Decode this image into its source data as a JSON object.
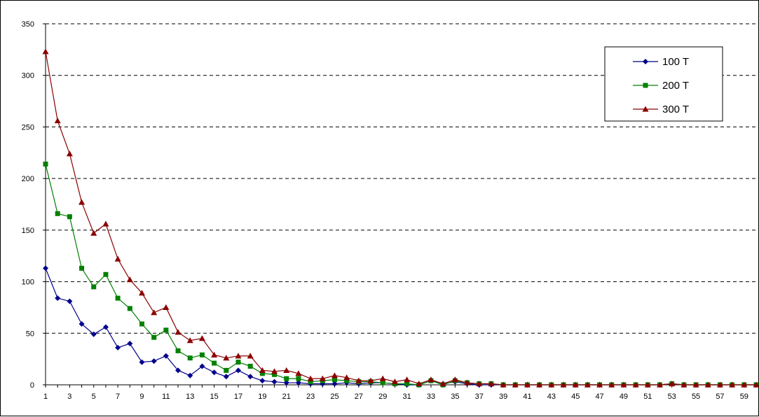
{
  "chart_data": {
    "type": "line",
    "title": "",
    "xlabel": "",
    "ylabel": "",
    "ylim": [
      0,
      350
    ],
    "y_ticks": [
      0,
      50,
      100,
      150,
      200,
      250,
      300,
      350
    ],
    "x": [
      1,
      2,
      3,
      4,
      5,
      6,
      7,
      8,
      9,
      10,
      11,
      12,
      13,
      14,
      15,
      16,
      17,
      18,
      19,
      20,
      21,
      22,
      23,
      24,
      25,
      26,
      27,
      28,
      29,
      30,
      31,
      32,
      33,
      34,
      35,
      36,
      37,
      38,
      39,
      40,
      41,
      42,
      43,
      44,
      45,
      46,
      47,
      48,
      49,
      50,
      51,
      52,
      53,
      54,
      55,
      56,
      57,
      58,
      59,
      60
    ],
    "x_tick_labels": [
      "1",
      "3",
      "5",
      "7",
      "9",
      "11",
      "13",
      "15",
      "17",
      "19",
      "21",
      "23",
      "25",
      "27",
      "29",
      "31",
      "33",
      "35",
      "37",
      "39",
      "41",
      "43",
      "45",
      "47",
      "49",
      "51",
      "53",
      "55",
      "57",
      "59"
    ],
    "grid": "horizontal dashed",
    "legend_position": "top-right",
    "series": [
      {
        "name": "100 T",
        "color": "#00008B",
        "marker": "diamond",
        "values": [
          113,
          84,
          81,
          59,
          49,
          56,
          36,
          40,
          22,
          23,
          28,
          14,
          9,
          18,
          12,
          8,
          14,
          8,
          4,
          3,
          2,
          2,
          1,
          1,
          1,
          2,
          1,
          2,
          2,
          1,
          0,
          0,
          4,
          1,
          3,
          1,
          0,
          0,
          0,
          0,
          0,
          0,
          0,
          0,
          0,
          0,
          0,
          0,
          0,
          0,
          0,
          0,
          1,
          0,
          0,
          0,
          0,
          0,
          0,
          0
        ]
      },
      {
        "name": "200 T",
        "color": "#008000",
        "marker": "square",
        "values": [
          214,
          166,
          163,
          113,
          95,
          107,
          84,
          74,
          59,
          46,
          53,
          33,
          26,
          29,
          21,
          14,
          22,
          18,
          11,
          10,
          6,
          6,
          3,
          4,
          5,
          4,
          3,
          3,
          2,
          1,
          1,
          0,
          4,
          0,
          4,
          2,
          1,
          1,
          0,
          0,
          0,
          0,
          0,
          0,
          0,
          0,
          0,
          0,
          0,
          0,
          0,
          0,
          1,
          0,
          0,
          0,
          0,
          0,
          0,
          0
        ]
      },
      {
        "name": "300 T",
        "color": "#8B0000",
        "marker": "triangle",
        "values": [
          323,
          256,
          224,
          177,
          147,
          156,
          122,
          102,
          89,
          70,
          75,
          51,
          43,
          45,
          29,
          26,
          28,
          28,
          14,
          13,
          14,
          11,
          6,
          6,
          9,
          7,
          4,
          4,
          6,
          3,
          5,
          1,
          5,
          1,
          5,
          2,
          1,
          1,
          0,
          0,
          0,
          0,
          0,
          0,
          0,
          0,
          0,
          0,
          0,
          0,
          0,
          0,
          1,
          0,
          0,
          0,
          0,
          0,
          0,
          0
        ]
      }
    ]
  }
}
